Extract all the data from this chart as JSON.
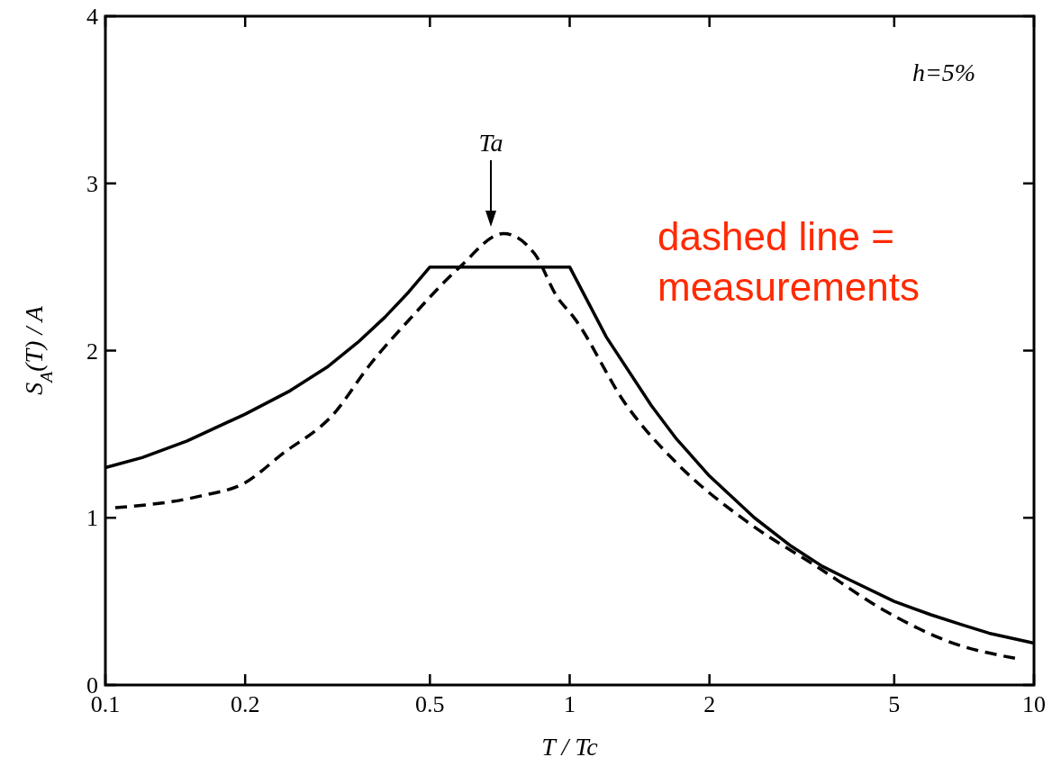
{
  "chart_data": {
    "type": "line",
    "xlabel": "T / Tc",
    "ylabel": "S$_{A}$(T) / A",
    "log": "x",
    "xlim": [
      0.1,
      10
    ],
    "xticks": [
      0.1,
      0.2,
      0.5,
      1,
      2,
      5,
      10
    ],
    "ylim": [
      0,
      4
    ],
    "yticks": [
      0,
      1,
      2,
      3,
      4
    ],
    "grid": false,
    "marker": "none",
    "series": [
      {
        "color": "#000000",
        "line_style": "solid",
        "x": [
          0.1,
          0.12,
          0.15,
          0.2,
          0.25,
          0.3,
          0.35,
          0.4,
          0.45,
          0.5,
          1,
          1.2,
          1.5,
          1.7,
          2,
          2.5,
          3,
          3.5,
          4,
          5,
          6,
          7,
          8,
          10
        ],
        "values": [
          1.3,
          1.36,
          1.46,
          1.62,
          1.76,
          1.9,
          2.05,
          2.2,
          2.35,
          2.5,
          2.5,
          2.08,
          1.67,
          1.47,
          1.25,
          1.0,
          0.83,
          0.71,
          0.63,
          0.5,
          0.42,
          0.36,
          0.31,
          0.25
        ]
      },
      {
        "color": "#000000",
        "line_style": "dashed",
        "x": [
          0.105,
          0.16,
          0.2,
          0.24,
          0.31,
          0.37,
          0.46,
          0.58,
          0.72,
          0.84,
          0.94,
          1.02,
          1.32,
          1.71,
          2.4,
          3.4,
          4.8,
          6.7,
          9.1
        ],
        "values": [
          1.06,
          1.13,
          1.21,
          1.38,
          1.62,
          1.91,
          2.21,
          2.5,
          2.7,
          2.58,
          2.32,
          2.2,
          1.68,
          1.32,
          0.98,
          0.71,
          0.44,
          0.25,
          0.16
        ]
      }
    ],
    "annotations": [
      "Ta",
      "h=5%",
      "dashed line = measurements"
    ]
  }
}
